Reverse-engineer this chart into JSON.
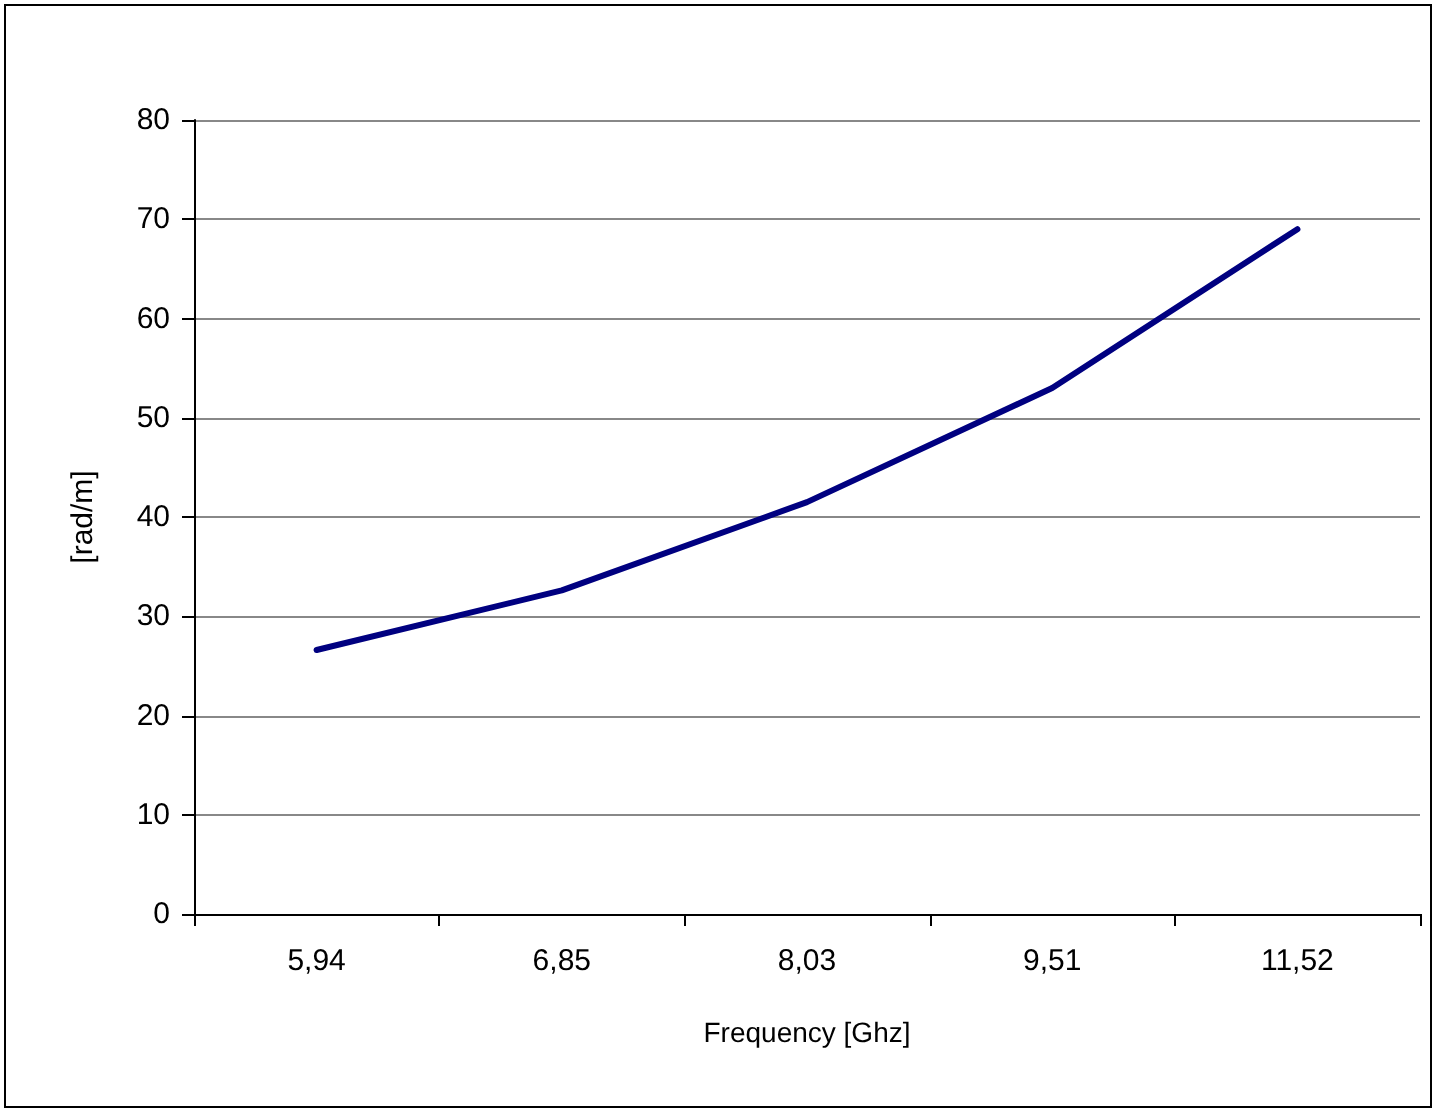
{
  "chart_data": {
    "type": "line",
    "xlabel": "Frequency [Ghz]",
    "ylabel": "[rad/m]",
    "categories": [
      "5,94",
      "6,85",
      "8,03",
      "9,51",
      "11,52"
    ],
    "series": [
      {
        "color": "#000080",
        "values": [
          26.6,
          32.6,
          41.5,
          53,
          69
        ]
      }
    ],
    "ylim": [
      0,
      80
    ],
    "yticks": [
      0,
      10,
      20,
      30,
      40,
      50,
      60,
      70,
      80
    ],
    "grid": "y",
    "marker": "none",
    "line_style": "solid"
  }
}
